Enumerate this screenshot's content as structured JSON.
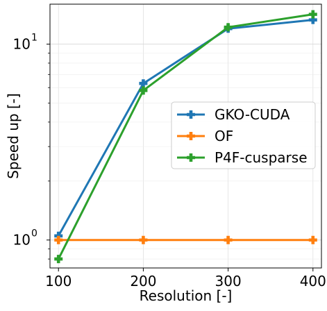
{
  "chart_data": {
    "type": "line",
    "xlabel": "Resolution [-]",
    "ylabel": "Speed up [-]",
    "x": [
      100,
      200,
      300,
      400
    ],
    "xticks": [
      100,
      200,
      300,
      400
    ],
    "xtick_labels": [
      "100",
      "200",
      "300",
      "400"
    ],
    "xlim": [
      90,
      410
    ],
    "yscale": "log",
    "ylim": [
      0.72,
      16.0
    ],
    "ymajor_ticks": [
      1,
      10
    ],
    "ymajor_tick_labels": [
      {
        "base": "10",
        "exp": "0"
      },
      {
        "base": "10",
        "exp": "1"
      }
    ],
    "yminor_ticks": [
      0.8,
      0.9,
      2,
      3,
      4,
      5,
      6,
      7,
      8,
      9
    ],
    "grid": true,
    "legend_position": "center-right",
    "series": [
      {
        "name": "GKO-CUDA",
        "color": "#1f77b4",
        "marker": "plus-filled",
        "values": [
          1.05,
          6.3,
          12.0,
          13.3
        ]
      },
      {
        "name": "OF",
        "color": "#ff7f0e",
        "marker": "plus-filled",
        "values": [
          1.0,
          1.0,
          1.0,
          1.0
        ]
      },
      {
        "name": "P4F-cusparse",
        "color": "#2ca02c",
        "marker": "plus-filled",
        "values": [
          0.8,
          5.8,
          12.2,
          14.2
        ]
      }
    ]
  }
}
